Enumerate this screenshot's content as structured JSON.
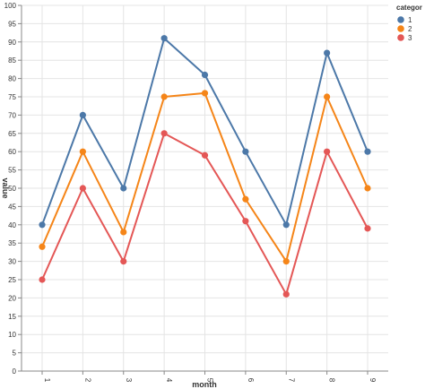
{
  "chart_data": {
    "type": "line",
    "x": [
      "1",
      "2",
      "3",
      "4",
      "5",
      "6",
      "7",
      "8",
      "9"
    ],
    "xlabel": "month",
    "ylabel": "value",
    "ylim": [
      0,
      100
    ],
    "yticks": [
      0,
      5,
      10,
      15,
      20,
      25,
      30,
      35,
      40,
      45,
      50,
      55,
      60,
      65,
      70,
      75,
      80,
      85,
      90,
      95,
      100
    ],
    "grid": true,
    "legend": {
      "title": "categor",
      "placement": "top-right"
    },
    "series": [
      {
        "name": "1",
        "color": "#4c78a8",
        "values": [
          40,
          70,
          50,
          91,
          81,
          60,
          40,
          87,
          60
        ]
      },
      {
        "name": "2",
        "color": "#f58518",
        "values": [
          34,
          60,
          38,
          75,
          76,
          47,
          30,
          75,
          50
        ]
      },
      {
        "name": "3",
        "color": "#e45756",
        "values": [
          25,
          50,
          30,
          65,
          59,
          41,
          21,
          60,
          39
        ]
      }
    ]
  }
}
